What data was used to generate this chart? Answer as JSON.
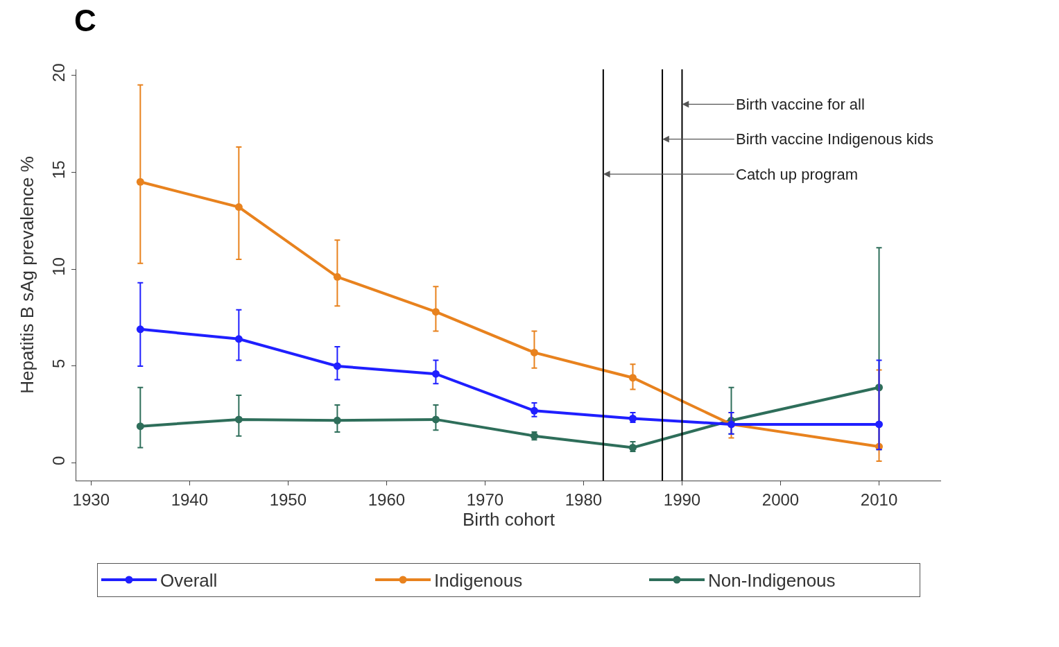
{
  "chart_data": {
    "type": "line",
    "title": "C",
    "xlabel": "Birth cohort",
    "ylabel": "Hepatitis B sAg prevalence %",
    "x": [
      1935,
      1945,
      1955,
      1965,
      1975,
      1985,
      1995,
      2010
    ],
    "series": [
      {
        "name": "Overall",
        "color": "#1f1fff",
        "values": [
          6.9,
          6.4,
          5.0,
          4.6,
          2.7,
          2.3,
          2.0,
          2.0
        ],
        "errors": [
          [
            5.0,
            9.3
          ],
          [
            5.3,
            7.9
          ],
          [
            4.3,
            6.0
          ],
          [
            4.1,
            5.3
          ],
          [
            2.4,
            3.1
          ],
          [
            2.1,
            2.6
          ],
          [
            1.5,
            2.6
          ],
          [
            0.7,
            5.3
          ]
        ]
      },
      {
        "name": "Indigenous",
        "color": "#e8821e",
        "values": [
          14.5,
          13.2,
          9.6,
          7.8,
          5.7,
          4.4,
          2.0,
          0.85
        ],
        "errors": [
          [
            10.3,
            19.5
          ],
          [
            10.5,
            16.3
          ],
          [
            8.1,
            11.5
          ],
          [
            6.8,
            9.1
          ],
          [
            4.9,
            6.8
          ],
          [
            3.8,
            5.1
          ],
          [
            1.3,
            2.6
          ],
          [
            0.1,
            4.8
          ]
        ]
      },
      {
        "name": "Non-Indigenous",
        "color": "#2e6e5a",
        "values": [
          1.9,
          2.25,
          2.2,
          2.25,
          1.4,
          0.8,
          2.2,
          3.9
        ],
        "errors": [
          [
            0.8,
            3.9
          ],
          [
            1.4,
            3.5
          ],
          [
            1.6,
            3.0
          ],
          [
            1.7,
            3.0
          ],
          [
            1.2,
            1.6
          ],
          [
            0.6,
            1.1
          ],
          [
            1.5,
            3.9
          ],
          [
            0.7,
            11.1
          ]
        ]
      }
    ],
    "ref_lines": [
      {
        "axis": "x",
        "value": 1990,
        "label": "Birth vaccine for all",
        "color": "#000000"
      },
      {
        "axis": "x",
        "value": 1988,
        "label": "Birth vaccine Indigenous kids",
        "color": "#000000"
      },
      {
        "axis": "x",
        "value": 1982,
        "label": "Catch up program",
        "color": "#000000"
      }
    ],
    "xlim": [
      1928.5,
      2016.3
    ],
    "ylim": [
      -0.9,
      20.3
    ],
    "xticks": [
      1930,
      1940,
      1950,
      1960,
      1970,
      1980,
      1990,
      2000,
      2010
    ],
    "yticks": [
      0,
      5,
      10,
      15,
      20
    ],
    "legend": "bottom",
    "marker": "circle",
    "line_style": "solid"
  }
}
